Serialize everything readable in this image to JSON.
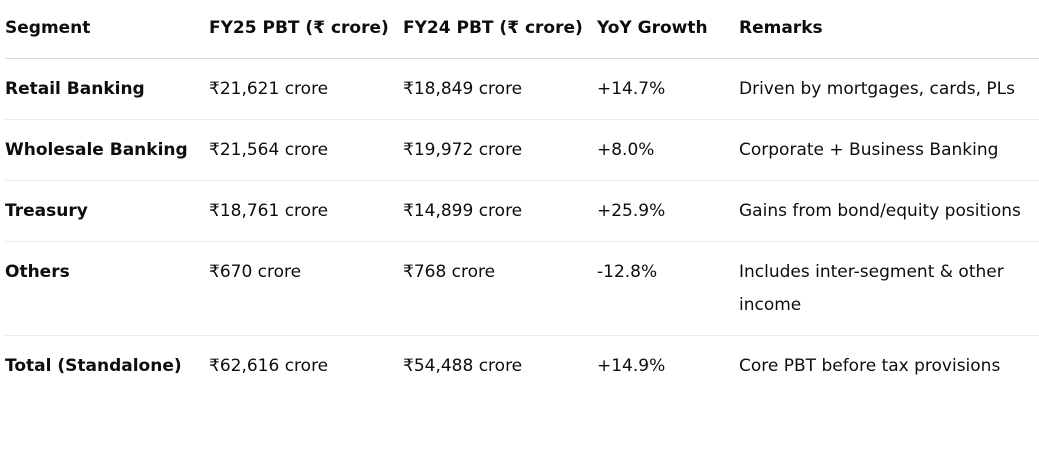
{
  "table": {
    "headers": [
      "Segment",
      "FY25 PBT (₹ crore)",
      "FY24 PBT (₹ crore)",
      "YoY Growth",
      "Remarks"
    ],
    "rows": [
      [
        "Retail Banking",
        "₹21,621 crore",
        "₹18,849 crore",
        "+14.7%",
        "Driven by mortgages, cards, PLs"
      ],
      [
        "Wholesale Banking",
        "₹21,564 crore",
        "₹19,972 crore",
        "+8.0%",
        "Corporate + Business Banking"
      ],
      [
        "Treasury",
        "₹18,761 crore",
        "₹14,899 crore",
        "+25.9%",
        "Gains from bond/equity positions"
      ],
      [
        "Others",
        "₹670 crore",
        "₹768 crore",
        "-12.8%",
        "Includes inter-segment & other income"
      ],
      [
        "Total (Standalone)",
        "₹62,616 crore",
        "₹54,488 crore",
        "+14.9%",
        "Core PBT before tax provisions"
      ]
    ]
  }
}
